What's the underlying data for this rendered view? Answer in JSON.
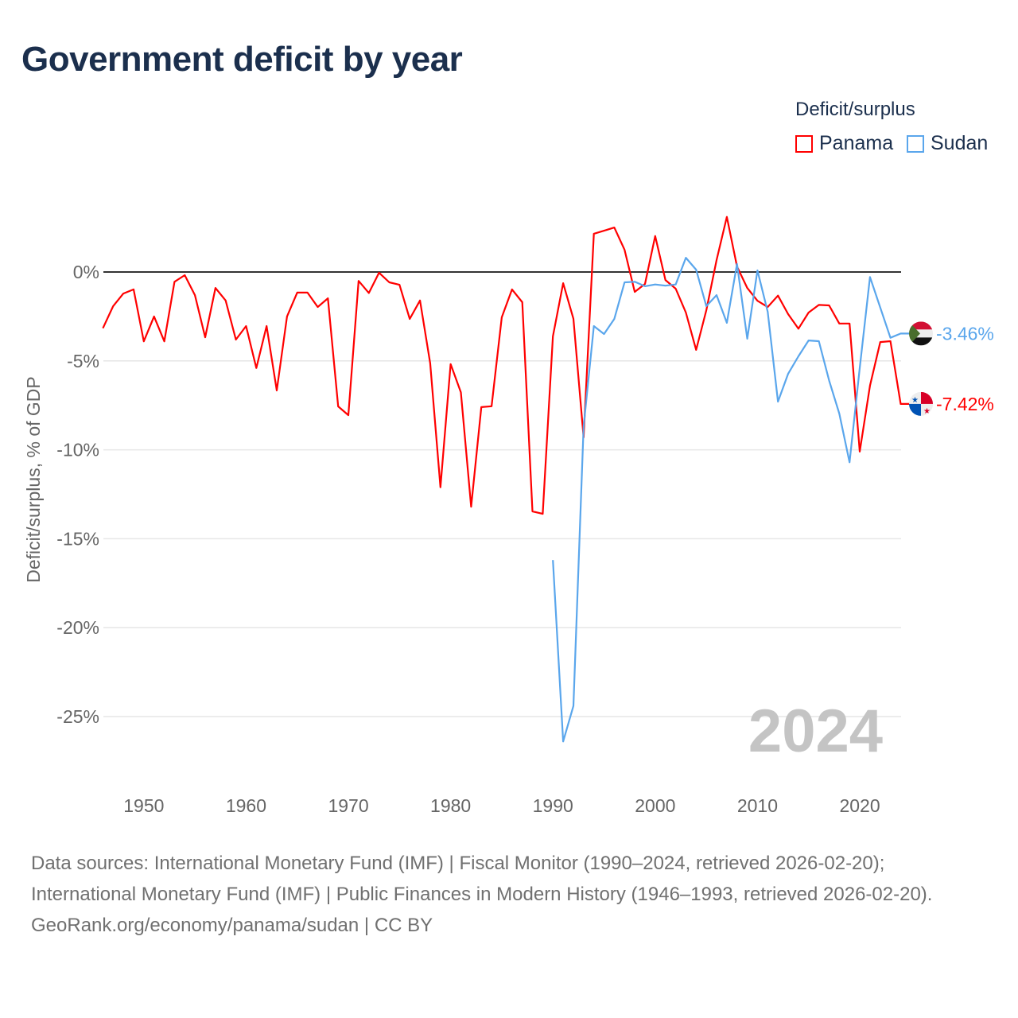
{
  "title": "Government deficit by year",
  "legend": {
    "title": "Deficit/surplus",
    "items": [
      {
        "label": "Panama",
        "color": "#ff0000"
      },
      {
        "label": "Sudan",
        "color": "#5aa6ec"
      }
    ]
  },
  "year_watermark": "2024",
  "sources": {
    "line1": "Data sources: International Monetary Fund (IMF) | Fiscal Monitor (1990–2024, retrieved 2026-02-20); International Monetary Fund (IMF) | Public Finances in Modern History (1946–1993, retrieved 2026-02-20).",
    "line2": "GeoRank.org/economy/panama/sudan | CC BY"
  },
  "chart_data": {
    "type": "line",
    "title": "Government deficit by year",
    "xlabel": "",
    "ylabel": "Deficit/surplus, % of GDP",
    "xlim": [
      1946,
      2024
    ],
    "ylim": [
      -27,
      3.5
    ],
    "x_ticks": [
      "1950",
      "1960",
      "1970",
      "1980",
      "1990",
      "2000",
      "2010",
      "2020"
    ],
    "y_ticks": [
      "0%",
      "-5%",
      "-10%",
      "-15%",
      "-20%",
      "-25%"
    ],
    "y_tick_values": [
      0,
      -5,
      -10,
      -15,
      -20,
      -25
    ],
    "series": [
      {
        "name": "Panama",
        "color": "#ff0000",
        "start_year": 1946,
        "end_label": "-7.42%",
        "values": [
          -3.16,
          -1.92,
          -1.21,
          -0.98,
          -3.9,
          -2.5,
          -3.9,
          -0.55,
          -0.18,
          -1.3,
          -3.67,
          -0.9,
          -1.6,
          -3.8,
          -3.04,
          -5.4,
          -3.04,
          -6.66,
          -2.5,
          -1.16,
          -1.16,
          -1.97,
          -1.48,
          -7.56,
          -8.05,
          -0.5,
          -1.18,
          -0.04,
          -0.58,
          -0.72,
          -2.64,
          -1.6,
          -5.13,
          -12.1,
          -5.18,
          -6.77,
          -13.2,
          -7.6,
          -7.55,
          -2.55,
          -0.98,
          -1.7,
          -13.46,
          -13.6,
          -3.62,
          -0.63,
          -2.63,
          -9.3,
          2.15,
          2.32,
          2.5,
          1.25,
          -1.12,
          -0.67,
          2.02,
          -0.45,
          -0.94,
          -2.28,
          -4.38,
          -2.15,
          0.67,
          3.1,
          0.31,
          -0.9,
          -1.62,
          -1.97,
          -1.33,
          -2.37,
          -3.19,
          -2.28,
          -1.85,
          -1.88,
          -2.9,
          -2.9,
          -10.1,
          -6.39,
          -3.94,
          -3.89,
          -7.42
        ]
      },
      {
        "name": "Sudan",
        "color": "#5aa6ec",
        "start_year": 1990,
        "end_label": "-3.46%",
        "values": [
          -16.2,
          -26.4,
          -24.4,
          -8.7,
          -3.04,
          -3.49,
          -2.64,
          -0.58,
          -0.55,
          -0.8,
          -0.7,
          -0.77,
          -0.7,
          0.8,
          0.13,
          -1.92,
          -1.3,
          -2.86,
          0.45,
          -3.75,
          0.09,
          -2.24,
          -7.29,
          -5.72,
          -4.74,
          -3.85,
          -3.89,
          -6.1,
          -7.96,
          -10.7,
          -5.4,
          -0.28,
          -2.0,
          -3.7,
          -3.46
        ]
      }
    ]
  }
}
